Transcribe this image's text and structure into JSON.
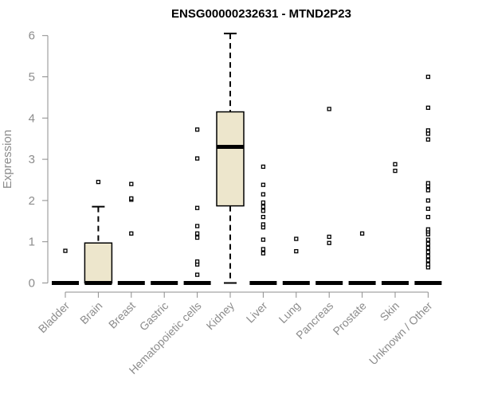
{
  "chart_data": {
    "type": "boxplot",
    "title": "ENSG00000232631 - MTND2P23",
    "xlabel": "",
    "ylabel": "Expression",
    "ylim": [
      0,
      6
    ],
    "yticks": [
      0,
      1,
      2,
      3,
      4,
      5,
      6
    ],
    "colors": {
      "box_fill": "#ede6cc",
      "stroke": "#000000",
      "axis": "#8c8c8c"
    },
    "categories": [
      "Bladder",
      "Brain",
      "Breast",
      "Gastric",
      "Hematopoietic cells",
      "Kidney",
      "Liver",
      "Lung",
      "Pancreas",
      "Prostate",
      "Skin",
      "Unknown / Other"
    ],
    "boxes": [
      {
        "category": "Bladder",
        "q1": 0,
        "median": 0,
        "q3": 0,
        "whisker_low": 0,
        "whisker_high": 0,
        "outliers": [
          0.78
        ]
      },
      {
        "category": "Brain",
        "q1": 0,
        "median": 0,
        "q3": 0.97,
        "whisker_low": 0,
        "whisker_high": 1.85,
        "outliers": [
          2.45
        ]
      },
      {
        "category": "Breast",
        "q1": 0,
        "median": 0,
        "q3": 0,
        "whisker_low": 0,
        "whisker_high": 0,
        "outliers": [
          1.2,
          2.02,
          2.05,
          2.4
        ]
      },
      {
        "category": "Gastric",
        "q1": 0,
        "median": 0,
        "q3": 0,
        "whisker_low": 0,
        "whisker_high": 0,
        "outliers": []
      },
      {
        "category": "Hematopoietic cells",
        "q1": 0,
        "median": 0,
        "q3": 0,
        "whisker_low": 0,
        "whisker_high": 0,
        "outliers": [
          0.2,
          0.45,
          0.52,
          1.1,
          1.2,
          1.38,
          1.82,
          3.02,
          3.72
        ]
      },
      {
        "category": "Kidney",
        "q1": 1.87,
        "median": 3.3,
        "q3": 4.15,
        "whisker_low": 0,
        "whisker_high": 6.05,
        "outliers": []
      },
      {
        "category": "Liver",
        "q1": 0,
        "median": 0,
        "q3": 0,
        "whisker_low": 0,
        "whisker_high": 0,
        "outliers": [
          0.72,
          0.82,
          1.05,
          1.35,
          1.42,
          1.6,
          1.75,
          1.85,
          1.95,
          2.15,
          2.38,
          2.82
        ]
      },
      {
        "category": "Lung",
        "q1": 0,
        "median": 0,
        "q3": 0,
        "whisker_low": 0,
        "whisker_high": 0,
        "outliers": [
          0.77,
          1.07
        ]
      },
      {
        "category": "Pancreas",
        "q1": 0,
        "median": 0,
        "q3": 0,
        "whisker_low": 0,
        "whisker_high": 0,
        "outliers": [
          0.97,
          1.12,
          4.22
        ]
      },
      {
        "category": "Prostate",
        "q1": 0,
        "median": 0,
        "q3": 0,
        "whisker_low": 0,
        "whisker_high": 0,
        "outliers": [
          1.2
        ]
      },
      {
        "category": "Skin",
        "q1": 0,
        "median": 0,
        "q3": 0,
        "whisker_low": 0,
        "whisker_high": 0,
        "outliers": [
          2.72,
          2.88
        ]
      },
      {
        "category": "Unknown / Other",
        "q1": 0,
        "median": 0,
        "q3": 0,
        "whisker_low": 0,
        "whisker_high": 0,
        "outliers": [
          0.38,
          0.45,
          0.55,
          0.65,
          0.75,
          0.85,
          0.95,
          1.05,
          1.18,
          1.25,
          1.3,
          1.6,
          1.8,
          2.0,
          2.25,
          2.35,
          2.42,
          3.48,
          3.62,
          3.7,
          4.25,
          5.0
        ]
      }
    ]
  }
}
